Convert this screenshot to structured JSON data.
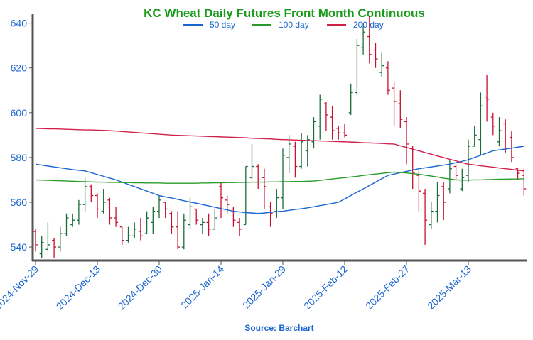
{
  "chart_data": {
    "type": "ohlc",
    "title": "KC Wheat Daily Futures Front Month Continuous",
    "source": "Source: Barchart",
    "categories": [
      "2024-Nov-29",
      null,
      null,
      null,
      null,
      null,
      null,
      null,
      null,
      null,
      "2024-Dec-13",
      null,
      null,
      null,
      null,
      null,
      null,
      null,
      null,
      null,
      "2024-Dec-30",
      null,
      null,
      null,
      null,
      null,
      null,
      null,
      null,
      null,
      "2025-Jan-14",
      null,
      null,
      null,
      null,
      null,
      null,
      null,
      null,
      null,
      "2025-Jan-29",
      null,
      null,
      null,
      null,
      null,
      null,
      null,
      null,
      null,
      "2025-Feb-12",
      null,
      null,
      null,
      null,
      null,
      null,
      null,
      null,
      null,
      "2025-Feb-27",
      null,
      null,
      null,
      null,
      null,
      null,
      null,
      null,
      null,
      "2025-Mar-13",
      null,
      null,
      null,
      null,
      null,
      null,
      null,
      null,
      null
    ],
    "open": [
      547,
      537,
      539,
      543,
      540,
      546,
      550,
      552,
      559,
      567,
      563,
      556,
      561,
      553,
      549,
      543,
      545,
      547,
      546,
      551,
      556,
      560,
      555,
      549,
      540,
      550,
      557,
      550,
      551,
      548,
      567,
      561,
      557,
      551,
      550,
      571,
      576,
      571,
      558,
      556,
      562,
      580,
      585,
      576,
      583,
      587,
      594,
      604,
      598,
      593,
      591,
      600,
      609,
      629,
      634,
      628,
      618,
      620,
      611,
      604,
      596,
      584,
      572,
      564,
      550,
      556,
      567,
      566,
      576,
      566,
      572,
      585,
      588,
      607,
      598,
      587,
      595,
      589,
      575,
      572
    ],
    "high": [
      548,
      545,
      551,
      544,
      549,
      555,
      555,
      561,
      571,
      568,
      564,
      566,
      562,
      558,
      549,
      549,
      551,
      553,
      556,
      558,
      563,
      560,
      556,
      556,
      555,
      562,
      557,
      553,
      555,
      557,
      569,
      563,
      558,
      553,
      576,
      586,
      577,
      575,
      560,
      566,
      584,
      590,
      587,
      591,
      590,
      598,
      608,
      605,
      603,
      594,
      595,
      613,
      633,
      640,
      643,
      631,
      627,
      623,
      614,
      610,
      598,
      585,
      574,
      566,
      560,
      569,
      569,
      579,
      577,
      575,
      588,
      594,
      609,
      617,
      600,
      598,
      597,
      592,
      575,
      575
    ],
    "low": [
      538,
      535,
      538,
      535,
      538,
      545,
      549,
      550,
      556,
      560,
      553,
      555,
      550,
      549,
      541,
      542,
      544,
      543,
      546,
      546,
      553,
      553,
      546,
      539,
      539,
      548,
      550,
      546,
      545,
      548,
      553,
      555,
      549,
      545,
      550,
      570,
      566,
      557,
      549,
      553,
      557,
      573,
      571,
      575,
      576,
      584,
      588,
      592,
      588,
      588,
      589,
      599,
      608,
      626,
      622,
      620,
      616,
      608,
      594,
      593,
      577,
      566,
      556,
      541,
      548,
      551,
      552,
      564,
      570,
      565,
      569,
      585,
      581,
      596,
      590,
      585,
      582,
      578,
      570,
      563
    ],
    "close": [
      541,
      542,
      541,
      540,
      546,
      553,
      552,
      559,
      567,
      563,
      557,
      560,
      553,
      551,
      543,
      545,
      548,
      545,
      553,
      556,
      561,
      557,
      549,
      540,
      552,
      558,
      552,
      551,
      548,
      553,
      562,
      559,
      552,
      548,
      576,
      576,
      570,
      567,
      555,
      562,
      581,
      586,
      576,
      587,
      588,
      596,
      606,
      599,
      592,
      591,
      590,
      609,
      630,
      636,
      626,
      624,
      621,
      610,
      605,
      597,
      586,
      573,
      565,
      552,
      556,
      563,
      560,
      575,
      572,
      571,
      585,
      590,
      603,
      606,
      594,
      592,
      584,
      580,
      573,
      566
    ],
    "up_color": "#1b6b3a",
    "down_color": "#c8102e",
    "series": [
      {
        "name": "50 day",
        "color": "#1a66d0",
        "values": [
          577,
          576.6,
          576.2,
          575.8,
          575.4,
          575,
          574.6,
          574.3,
          574,
          573.2,
          572.4,
          571.6,
          570.8,
          570,
          569,
          568,
          567,
          566,
          565,
          564,
          563,
          562.4,
          561.9,
          561.3,
          560.7,
          560.1,
          559.6,
          559,
          558.4,
          557.8,
          557.2,
          556.6,
          556,
          555.7,
          555.4,
          555.2,
          555,
          555.2,
          555.5,
          555.8,
          556,
          556.4,
          556.8,
          557.1,
          557.5,
          558,
          558.5,
          559,
          559.5,
          560,
          561.5,
          563,
          564.5,
          566,
          567.5,
          569,
          570.5,
          572,
          572.6,
          573.2,
          573.8,
          574.4,
          575,
          575.4,
          575.8,
          576.2,
          576.6,
          577,
          577.7,
          578.3,
          579,
          580,
          581,
          582,
          583,
          583.4,
          583.8,
          584.2,
          584.6,
          585
        ]
      },
      {
        "name": "100 day",
        "color": "#2a9a2a",
        "values": [
          570,
          569.9,
          569.8,
          569.7,
          569.6,
          569.5,
          569.4,
          569.3,
          569.2,
          569.1,
          569,
          569,
          568.9,
          568.9,
          568.8,
          568.8,
          568.7,
          568.7,
          568.6,
          568.6,
          568.6,
          568.5,
          568.5,
          568.5,
          568.5,
          568.5,
          568.5,
          568.6,
          568.6,
          568.7,
          568.7,
          568.8,
          568.8,
          568.9,
          568.9,
          569,
          569,
          569,
          569.1,
          569.1,
          569.2,
          569.2,
          569.3,
          569.3,
          569.4,
          569.5,
          569.8,
          570.1,
          570.4,
          570.7,
          571,
          571.3,
          571.6,
          572,
          572.3,
          572.6,
          572.9,
          573.2,
          573.5,
          573.3,
          573.1,
          572.8,
          572.5,
          572.1,
          571.7,
          571.3,
          570.8,
          570.4,
          570,
          569.9,
          569.9,
          570,
          570,
          570.1,
          570.2,
          570.3,
          570.3,
          570.4,
          570.4,
          570.5
        ]
      },
      {
        "name": "200 day",
        "color": "#d0204a",
        "values": [
          593,
          592.9,
          592.8,
          592.8,
          592.7,
          592.6,
          592.5,
          592.4,
          592.3,
          592.3,
          592.2,
          592.1,
          592,
          591.8,
          591.6,
          591.4,
          591.2,
          591,
          590.8,
          590.6,
          590.4,
          590.2,
          590,
          589.9,
          589.8,
          589.7,
          589.6,
          589.5,
          589.4,
          589.3,
          589.2,
          589.1,
          589,
          588.9,
          588.8,
          588.6,
          588.5,
          588.4,
          588.3,
          588.1,
          588,
          587.9,
          587.8,
          587.7,
          587.6,
          587.5,
          587.4,
          587.3,
          587.2,
          587.1,
          587,
          586.9,
          586.8,
          586.6,
          586.5,
          586.4,
          586.3,
          586.1,
          586,
          585.2,
          584.5,
          583.7,
          583,
          582.2,
          581.5,
          580.7,
          580,
          579.2,
          578.5,
          577.7,
          577,
          576.7,
          576.3,
          576,
          575.7,
          575.3,
          575,
          574.7,
          574.3,
          574
        ]
      }
    ],
    "ylim": [
      534,
      644
    ],
    "yticks": [
      540,
      560,
      580,
      600,
      620,
      640
    ],
    "grid": false
  }
}
